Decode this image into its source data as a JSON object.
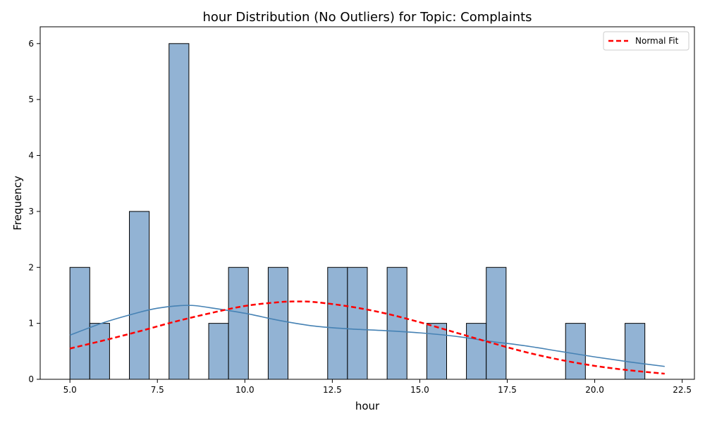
{
  "chart_data": {
    "type": "bar",
    "title": "hour Distribution (No Outliers) for Topic: Complaints",
    "xlabel": "hour",
    "ylabel": "Frequency",
    "xlim": [
      4.15,
      22.85
    ],
    "ylim": [
      0,
      6.3
    ],
    "xticks": [
      "5.0",
      "7.5",
      "10.0",
      "12.5",
      "15.0",
      "17.5",
      "20.0",
      "22.5"
    ],
    "yticks": [
      "0",
      "1",
      "2",
      "3",
      "4",
      "5",
      "6"
    ],
    "bin_edges": [
      5.0,
      5.567,
      6.133,
      6.7,
      7.267,
      7.833,
      8.4,
      8.967,
      9.533,
      10.1,
      10.667,
      11.233,
      11.8,
      12.367,
      12.933,
      13.5,
      14.067,
      14.633,
      15.2,
      15.767,
      16.333,
      16.9,
      17.467,
      18.033,
      18.6,
      19.167,
      19.733,
      20.3,
      20.867,
      21.433,
      22.0
    ],
    "counts": [
      2,
      1,
      0,
      3,
      0,
      6,
      0,
      1,
      2,
      0,
      2,
      0,
      0,
      2,
      2,
      0,
      2,
      0,
      1,
      0,
      1,
      2,
      0,
      0,
      0,
      1,
      0,
      0,
      1,
      0
    ],
    "series": [
      {
        "name": "",
        "kind": "kde",
        "x": [
          5.0,
          6.0,
          7.0,
          7.5,
          8.0,
          8.5,
          9.0,
          10.0,
          11.0,
          12.0,
          13.0,
          14.0,
          15.0,
          16.0,
          17.0,
          18.0,
          19.0,
          20.0,
          21.0,
          22.0
        ],
        "y": [
          0.79,
          1.02,
          1.2,
          1.27,
          1.31,
          1.32,
          1.28,
          1.18,
          1.05,
          0.95,
          0.9,
          0.87,
          0.83,
          0.77,
          0.68,
          0.6,
          0.5,
          0.4,
          0.31,
          0.23
        ]
      },
      {
        "name": "Normal Fit",
        "kind": "normal-fit",
        "x": [
          5.0,
          6.0,
          7.0,
          8.0,
          9.0,
          10.0,
          11.0,
          11.5,
          12.0,
          13.0,
          14.0,
          15.0,
          16.0,
          17.0,
          18.0,
          19.0,
          20.0,
          21.0,
          22.0
        ],
        "y": [
          0.55,
          0.7,
          0.86,
          1.03,
          1.18,
          1.31,
          1.38,
          1.39,
          1.38,
          1.3,
          1.18,
          1.02,
          0.84,
          0.66,
          0.49,
          0.35,
          0.24,
          0.16,
          0.1
        ]
      }
    ],
    "legend": {
      "position": "top-right",
      "entries": [
        "Normal Fit"
      ]
    },
    "grid": false,
    "colors": {
      "bar_fill": "#92b3d4",
      "bar_edge": "#000000",
      "kde": "#4682b4",
      "normal_fit": "#ff0000"
    }
  }
}
